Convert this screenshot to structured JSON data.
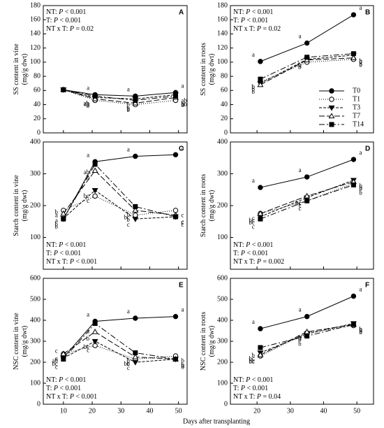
{
  "x_label": "Days after transplanting",
  "chart_data": [
    {
      "type": "line",
      "panel": "A",
      "ylabel": [
        "SS content in vine",
        "(mg/g dwt)"
      ],
      "x": [
        10,
        21,
        35,
        49
      ],
      "xlim": [
        3,
        53
      ],
      "xticks": [
        10,
        20,
        30,
        40,
        50
      ],
      "ylim": [
        0,
        180
      ],
      "yticks": [
        0,
        20,
        40,
        60,
        80,
        100,
        120,
        140,
        160,
        180
      ],
      "stats_position": "top-left",
      "stats": [
        [
          "NT: ",
          "P",
          " < 0.001"
        ],
        [
          "T: ",
          "P",
          " < 0.001"
        ],
        [
          "NT x T: ",
          "P",
          " = 0.02"
        ]
      ],
      "series": [
        {
          "color": "#000000",
          "marker": "circle-filled",
          "dash": "none",
          "values": [
            61,
            54,
            52,
            57
          ],
          "letters": [
            null,
            "a",
            "a",
            "a"
          ]
        },
        {
          "color": "#000000",
          "marker": "circle-open",
          "dash": "1,2",
          "values": [
            61,
            46,
            40,
            46
          ],
          "letters": [
            null,
            "b",
            "b",
            "b"
          ]
        },
        {
          "color": "#000000",
          "marker": "triangle-down-filled",
          "dash": "4,2",
          "values": [
            61,
            50,
            48,
            54
          ],
          "letters": [
            null,
            "ab",
            "b",
            "ab"
          ]
        },
        {
          "color": "#000000",
          "marker": "triangle-up-open",
          "dash": "8,3",
          "values": [
            61,
            48,
            42,
            50
          ],
          "letters": [
            null,
            "b",
            "b",
            "ab"
          ]
        },
        {
          "color": "#000000",
          "marker": "square-filled",
          "dash": "8,3,2,3",
          "values": [
            61,
            52,
            46,
            52
          ],
          "letters": [
            null,
            "ab",
            "b",
            "b"
          ]
        }
      ]
    },
    {
      "type": "line",
      "panel": "B",
      "ylabel": [
        "SS content in roots",
        "(mg/g dwt)"
      ],
      "x": [
        21,
        35,
        49
      ],
      "xlim": [
        12,
        55
      ],
      "xticks": [
        20,
        30,
        40,
        50
      ],
      "ylim": [
        0,
        180
      ],
      "yticks": [
        0,
        20,
        40,
        60,
        80,
        100,
        120,
        140,
        160,
        180
      ],
      "stats_position": "top-left",
      "legend": "right",
      "stats": [
        [
          "NT: ",
          "P",
          " < 0.001"
        ],
        [
          "T: ",
          "P",
          " < 0.001"
        ],
        [
          "NT x T: ",
          "P",
          " = 0.02"
        ]
      ],
      "series": [
        {
          "name": "T0",
          "color": "#000000",
          "marker": "circle-filled",
          "dash": "none",
          "values": [
            101,
            127,
            167
          ],
          "letters": [
            "a",
            "a",
            "a"
          ]
        },
        {
          "name": "T1",
          "color": "#000000",
          "marker": "circle-open",
          "dash": "1,2",
          "values": [
            72,
            100,
            104
          ],
          "letters": [
            "b",
            "b",
            "b"
          ]
        },
        {
          "name": "T3",
          "color": "#000000",
          "marker": "triangle-down-filled",
          "dash": "4,2",
          "values": [
            70,
            104,
            110
          ],
          "letters": [
            "b",
            "b",
            "b"
          ]
        },
        {
          "name": "T7",
          "color": "#000000",
          "marker": "triangle-up-open",
          "dash": "8,3",
          "values": [
            68,
            103,
            106
          ],
          "letters": [
            "b",
            "b",
            "b"
          ]
        },
        {
          "name": "T14",
          "color": "#000000",
          "marker": "square-filled",
          "dash": "8,3,2,3",
          "values": [
            76,
            107,
            112
          ],
          "letters": [
            "b",
            "b",
            "b"
          ]
        }
      ]
    },
    {
      "type": "line",
      "panel": "C",
      "ylabel": [
        "Starch content in vine",
        "(mg/g dwt)"
      ],
      "x": [
        10,
        21,
        35,
        49
      ],
      "xlim": [
        3,
        53
      ],
      "xticks": [
        10,
        20,
        30,
        40,
        50
      ],
      "ylim": [
        0,
        400
      ],
      "yticks": [
        100,
        200,
        300,
        400
      ],
      "stats_position": "bottom-left",
      "stats": [
        [
          "NT: ",
          "P",
          " < 0.001"
        ],
        [
          "T: ",
          "P",
          " < 0.001"
        ],
        [
          "NT x T: ",
          "P",
          " < 0.001"
        ]
      ],
      "series": [
        {
          "color": "#000000",
          "marker": "circle-filled",
          "dash": "none",
          "values": [
            158,
            338,
            355,
            360
          ],
          "letters": [
            "b",
            "a",
            "a",
            "a"
          ]
        },
        {
          "color": "#000000",
          "marker": "circle-open",
          "dash": "1,2",
          "values": [
            185,
            230,
            170,
            185
          ],
          "letters": [
            "a",
            "c",
            "b",
            "c"
          ]
        },
        {
          "color": "#000000",
          "marker": "triangle-down-filled",
          "dash": "4,2",
          "values": [
            160,
            248,
            158,
            165
          ],
          "letters": [
            "b",
            "bc",
            "c",
            "c"
          ]
        },
        {
          "color": "#000000",
          "marker": "triangle-up-open",
          "dash": "8,3",
          "values": [
            175,
            310,
            185,
            170
          ],
          "letters": [
            "a",
            "b",
            "bc",
            "c"
          ]
        },
        {
          "color": "#000000",
          "marker": "square-filled",
          "dash": "8,3,2,3",
          "values": [
            158,
            330,
            197,
            165
          ],
          "letters": [
            "b",
            "ab",
            "b",
            "c"
          ]
        }
      ]
    },
    {
      "type": "line",
      "panel": "D",
      "ylabel": [
        "Starch content in roots",
        "(mg/g dwt)"
      ],
      "x": [
        21,
        35,
        49
      ],
      "xlim": [
        12,
        55
      ],
      "xticks": [
        20,
        30,
        40,
        50
      ],
      "ylim": [
        0,
        400
      ],
      "yticks": [
        100,
        200,
        300,
        400
      ],
      "stats_position": "bottom-left",
      "stats": [
        [
          "NT: ",
          "P",
          " < 0.001"
        ],
        [
          "T: ",
          "P",
          " < 0.001"
        ],
        [
          "NT x T: ",
          "P",
          " = 0.002"
        ]
      ],
      "series": [
        {
          "color": "#000000",
          "marker": "circle-filled",
          "dash": "none",
          "values": [
            257,
            290,
            345
          ],
          "letters": [
            "a",
            "a",
            "a"
          ]
        },
        {
          "color": "#000000",
          "marker": "circle-open",
          "dash": "1,2",
          "values": [
            175,
            215,
            270
          ],
          "letters": [
            "c",
            "c",
            "b"
          ]
        },
        {
          "color": "#000000",
          "marker": "triangle-down-filled",
          "dash": "4,2",
          "values": [
            165,
            225,
            280
          ],
          "letters": [
            "bc",
            "bc",
            "b"
          ]
        },
        {
          "color": "#000000",
          "marker": "triangle-up-open",
          "dash": "8,3",
          "values": [
            175,
            230,
            275
          ],
          "letters": [
            "bc",
            "bc",
            "b"
          ]
        },
        {
          "color": "#000000",
          "marker": "square-filled",
          "dash": "8,3,2,3",
          "values": [
            158,
            215,
            265
          ],
          "letters": [
            "c",
            "c",
            "b"
          ]
        }
      ]
    },
    {
      "type": "line",
      "panel": "E",
      "ylabel": [
        "NSC content in vine",
        "(mg/g dwt)"
      ],
      "x": [
        10,
        21,
        35,
        49
      ],
      "xlim": [
        3,
        53
      ],
      "xticks": [
        10,
        20,
        30,
        40,
        50
      ],
      "ylim": [
        0,
        600
      ],
      "yticks": [
        0,
        100,
        200,
        300,
        400,
        500,
        600
      ],
      "stats_position": "bottom-left",
      "stats": [
        [
          "NT: ",
          "P",
          " < 0.001"
        ],
        [
          "T: ",
          "P",
          " < 0.001"
        ],
        [
          "NT x T: ",
          "P",
          " < 0.001"
        ]
      ],
      "series": [
        {
          "color": "#000000",
          "marker": "circle-filled",
          "dash": "none",
          "values": [
            222,
            395,
            410,
            418
          ],
          "letters": [
            "c",
            "a",
            "a",
            "a"
          ]
        },
        {
          "color": "#000000",
          "marker": "circle-open",
          "dash": "1,2",
          "values": [
            240,
            280,
            215,
            230
          ],
          "letters": [
            "a",
            "c",
            "b",
            "b"
          ]
        },
        {
          "color": "#000000",
          "marker": "triangle-down-filled",
          "dash": "4,2",
          "values": [
            220,
            300,
            200,
            215
          ],
          "letters": [
            "bc",
            "bc",
            "c",
            "b"
          ]
        },
        {
          "color": "#000000",
          "marker": "triangle-up-open",
          "dash": "8,3",
          "values": [
            240,
            345,
            225,
            215
          ],
          "letters": [
            "ab",
            "b",
            "bc",
            "b"
          ]
        },
        {
          "color": "#000000",
          "marker": "square-filled",
          "dash": "8,3,2,3",
          "values": [
            215,
            385,
            245,
            215
          ],
          "letters": [
            "c",
            "a",
            "b",
            "b"
          ]
        }
      ]
    },
    {
      "type": "line",
      "panel": "F",
      "ylabel": [
        "NSC content in roots",
        "(mg/g dwt)"
      ],
      "x": [
        21,
        35,
        49
      ],
      "xlim": [
        12,
        55
      ],
      "xticks": [
        20,
        30,
        40,
        50
      ],
      "ylim": [
        0,
        600
      ],
      "yticks": [
        0,
        100,
        200,
        300,
        400,
        500,
        600
      ],
      "stats_position": "bottom-left",
      "stats": [
        [
          "NT: ",
          "P",
          " < 0.001"
        ],
        [
          "T: ",
          "P",
          " < 0.001"
        ],
        [
          "NT x T: ",
          "P",
          " = 0.04"
        ]
      ],
      "series": [
        {
          "color": "#000000",
          "marker": "circle-filled",
          "dash": "none",
          "values": [
            360,
            418,
            515
          ],
          "letters": [
            "a",
            "a",
            "a"
          ]
        },
        {
          "color": "#000000",
          "marker": "circle-open",
          "dash": "1,2",
          "values": [
            230,
            340,
            375
          ],
          "letters": [
            "bc",
            "b",
            "b"
          ]
        },
        {
          "color": "#000000",
          "marker": "triangle-down-filled",
          "dash": "4,2",
          "values": [
            245,
            335,
            385
          ],
          "letters": [
            "bc",
            "b",
            "b"
          ]
        },
        {
          "color": "#000000",
          "marker": "triangle-up-open",
          "dash": "8,3",
          "values": [
            235,
            345,
            380
          ],
          "letters": [
            "bc",
            "b",
            "b"
          ]
        },
        {
          "color": "#000000",
          "marker": "square-filled",
          "dash": "8,3,2,3",
          "values": [
            270,
            325,
            380
          ],
          "letters": [
            "b",
            "b",
            "b"
          ]
        }
      ]
    }
  ]
}
